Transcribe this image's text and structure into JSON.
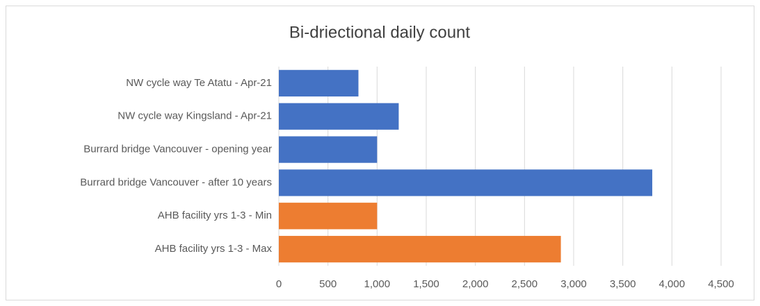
{
  "chart_data": {
    "type": "hbar",
    "title": "Bi-driectional daily count",
    "categories": [
      "NW cycle way Te Atatu - Apr-21",
      "NW cycle way Kingsland - Apr-21",
      "Burrard bridge Vancouver - opening year",
      "Burrard bridge Vancouver - after 10 years",
      "AHB facility yrs 1-3 - Min",
      "AHB facility yrs 1-3 - Max"
    ],
    "values": [
      810,
      1220,
      1000,
      3800,
      1000,
      2870
    ],
    "colors": [
      "#4472c4",
      "#4472c4",
      "#4472c4",
      "#4472c4",
      "#ed7d31",
      "#ed7d31"
    ],
    "xlim": [
      0,
      4500
    ],
    "xticks": [
      0,
      500,
      {
        "value": 1000,
        "label": "1,000"
      },
      {
        "value": 1500,
        "label": "1,500"
      },
      {
        "value": 2000,
        "label": "2,000"
      },
      {
        "value": 2500,
        "label": "2,500"
      },
      {
        "value": 3000,
        "label": "3,000"
      },
      {
        "value": 3500,
        "label": "3,500"
      },
      {
        "value": 4000,
        "label": "4,000"
      },
      {
        "value": 4500,
        "label": "4,500"
      }
    ],
    "grid": true
  }
}
